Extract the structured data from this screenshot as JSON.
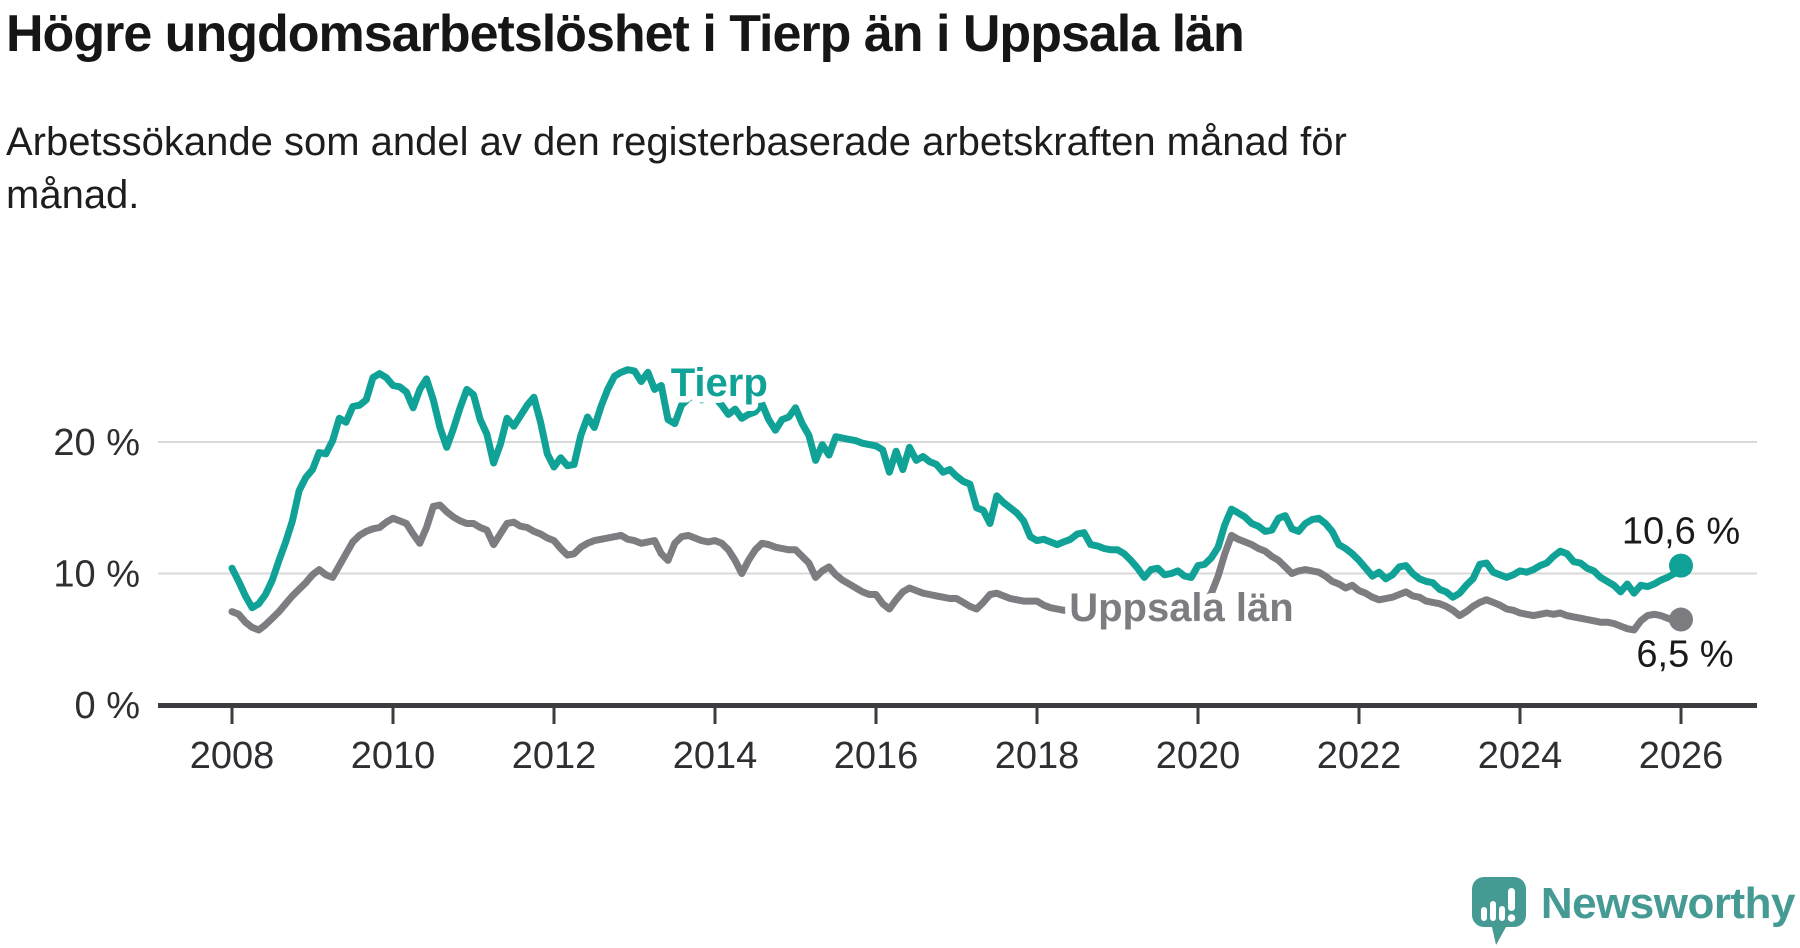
{
  "header": {
    "title": "Högre ungdomsarbetslöshet i Tierp än i Uppsala län",
    "subtitle_line1": "Arbetssökande som andel av den registerbaserade arbetskraften månad för",
    "subtitle_line2": "månad."
  },
  "chart_data": {
    "type": "line",
    "description": "Monthly youth unemployment share, Jan 2008 - Jan 2026",
    "x_axis": {
      "start_year": 2008,
      "points_per_year": 12,
      "ticks": [
        2008,
        2010,
        2012,
        2014,
        2016,
        2018,
        2020,
        2022,
        2024,
        2026
      ]
    },
    "y_axis": {
      "unit": "%",
      "max": 27,
      "ticks": [
        {
          "value": 0,
          "label": "0 %"
        },
        {
          "value": 10,
          "label": "10 %"
        },
        {
          "value": 20,
          "label": "20 %"
        }
      ]
    },
    "grid": "horizontal",
    "legend_position": "inline-labels",
    "colors": {
      "accent_teal": "#10a296",
      "neutral_gray": "#7c7c81",
      "axis": "#3b3b40",
      "gridline": "#d9d9d9",
      "tick_text": "#2f2f33",
      "value_text": "#1a1a1a"
    },
    "series": [
      {
        "name": "Tierp",
        "color": "#10a296",
        "label": {
          "text": "Tierp",
          "x": 2013.45,
          "y": 23.5
        },
        "end_label": "10,6 %",
        "end_value": 10.6,
        "values": [
          10.4,
          9.4,
          8.3,
          7.4,
          7.7,
          8.4,
          9.5,
          11.0,
          12.4,
          14.0,
          16.3,
          17.3,
          17.9,
          19.2,
          19.1,
          20.1,
          21.8,
          21.5,
          22.7,
          22.8,
          23.2,
          24.9,
          25.2,
          24.9,
          24.3,
          24.2,
          23.8,
          22.6,
          24.0,
          24.8,
          23.2,
          21.1,
          19.6,
          21.0,
          22.6,
          24.0,
          23.6,
          21.7,
          20.6,
          18.4,
          19.8,
          21.8,
          21.2,
          22.0,
          22.8,
          23.4,
          21.5,
          19.1,
          18.1,
          18.8,
          18.2,
          18.3,
          20.5,
          21.9,
          21.1,
          22.7,
          24.0,
          25.0,
          25.3,
          25.5,
          25.4,
          24.6,
          25.3,
          24.0,
          24.3,
          21.7,
          21.4,
          22.8,
          23.3,
          23.6,
          23.2,
          23.5,
          23.4,
          22.8,
          22.1,
          22.5,
          21.8,
          22.1,
          22.3,
          22.9,
          21.7,
          20.9,
          21.7,
          21.9,
          22.6,
          21.4,
          20.5,
          18.6,
          19.8,
          19.0,
          20.4,
          20.3,
          20.2,
          20.1,
          19.9,
          19.8,
          19.7,
          19.4,
          17.7,
          19.3,
          17.9,
          19.6,
          18.6,
          18.9,
          18.5,
          18.3,
          17.7,
          17.9,
          17.4,
          17.0,
          16.8,
          15.0,
          14.8,
          13.8,
          15.9,
          15.4,
          15.0,
          14.6,
          14.0,
          12.8,
          12.5,
          12.6,
          12.4,
          12.2,
          12.4,
          12.6,
          13.0,
          13.1,
          12.2,
          12.1,
          11.9,
          11.8,
          11.8,
          11.5,
          11.0,
          10.4,
          9.7,
          10.3,
          10.4,
          9.9,
          10.0,
          10.2,
          9.8,
          9.7,
          10.6,
          10.7,
          11.2,
          12.0,
          13.7,
          14.9,
          14.6,
          14.3,
          13.8,
          13.6,
          13.2,
          13.3,
          14.2,
          14.4,
          13.4,
          13.2,
          13.8,
          14.1,
          14.2,
          13.8,
          13.2,
          12.2,
          11.9,
          11.5,
          11.0,
          10.4,
          9.8,
          10.1,
          9.6,
          9.9,
          10.5,
          10.6,
          10.0,
          9.6,
          9.4,
          9.3,
          8.8,
          8.6,
          8.2,
          8.5,
          9.1,
          9.6,
          10.7,
          10.8,
          10.1,
          9.9,
          9.7,
          9.9,
          10.2,
          10.1,
          10.3,
          10.6,
          10.8,
          11.3,
          11.7,
          11.5,
          10.9,
          10.8,
          10.4,
          10.2,
          9.7,
          9.4,
          9.1,
          8.6,
          9.2,
          8.5,
          9.1,
          9.0,
          9.2,
          9.5,
          9.7,
          10.0,
          10.6
        ]
      },
      {
        "name": "Uppsala län",
        "color": "#7c7c81",
        "label": {
          "text": "Uppsala län",
          "x": 2018.4,
          "y": 6.4
        },
        "end_label": "6,5 %",
        "end_value": 6.5,
        "values": [
          7.1,
          6.9,
          6.3,
          5.9,
          5.7,
          6.1,
          6.6,
          7.1,
          7.7,
          8.3,
          8.8,
          9.3,
          9.9,
          10.3,
          9.9,
          9.7,
          10.6,
          11.5,
          12.4,
          12.9,
          13.2,
          13.4,
          13.5,
          13.9,
          14.2,
          14.0,
          13.8,
          13.0,
          12.3,
          13.5,
          15.1,
          15.2,
          14.7,
          14.3,
          14.0,
          13.8,
          13.8,
          13.5,
          13.3,
          12.2,
          13.0,
          13.8,
          13.9,
          13.6,
          13.5,
          13.2,
          13.0,
          12.7,
          12.5,
          11.9,
          11.4,
          11.5,
          12.0,
          12.3,
          12.5,
          12.6,
          12.7,
          12.8,
          12.9,
          12.6,
          12.5,
          12.3,
          12.4,
          12.5,
          11.5,
          11.0,
          12.3,
          12.8,
          12.9,
          12.7,
          12.5,
          12.4,
          12.5,
          12.3,
          11.8,
          11.0,
          10.0,
          11.0,
          11.8,
          12.3,
          12.2,
          12.0,
          11.9,
          11.8,
          11.8,
          11.3,
          10.8,
          9.7,
          10.2,
          10.5,
          9.9,
          9.5,
          9.2,
          8.9,
          8.6,
          8.4,
          8.4,
          7.7,
          7.3,
          8.0,
          8.6,
          8.9,
          8.7,
          8.5,
          8.4,
          8.3,
          8.2,
          8.1,
          8.1,
          7.8,
          7.5,
          7.3,
          7.8,
          8.4,
          8.5,
          8.3,
          8.1,
          8.0,
          7.9,
          7.9,
          7.9,
          7.6,
          7.4,
          7.3,
          7.2,
          7.2,
          7.3,
          7.2,
          7.1,
          7.0,
          7.0,
          7.0,
          7.0,
          6.9,
          6.8,
          6.8,
          6.9,
          7.0,
          7.1,
          7.0,
          7.0,
          7.1,
          7.1,
          7.2,
          7.4,
          7.8,
          8.5,
          9.8,
          11.5,
          12.9,
          12.6,
          12.4,
          12.2,
          11.9,
          11.7,
          11.3,
          11.0,
          10.5,
          10.0,
          10.2,
          10.3,
          10.2,
          10.1,
          9.8,
          9.4,
          9.2,
          8.9,
          9.1,
          8.7,
          8.5,
          8.2,
          8.0,
          8.1,
          8.2,
          8.4,
          8.6,
          8.3,
          8.2,
          7.9,
          7.8,
          7.7,
          7.5,
          7.2,
          6.8,
          7.1,
          7.5,
          7.8,
          8.0,
          7.8,
          7.6,
          7.3,
          7.2,
          7.0,
          6.9,
          6.8,
          6.9,
          7.0,
          6.9,
          7.0,
          6.8,
          6.7,
          6.6,
          6.5,
          6.4,
          6.3,
          6.3,
          6.2,
          6.0,
          5.8,
          5.7,
          6.4,
          6.8,
          6.9,
          6.8,
          6.6,
          6.4,
          6.5
        ]
      }
    ]
  },
  "branding": {
    "name": "Newsworthy"
  }
}
